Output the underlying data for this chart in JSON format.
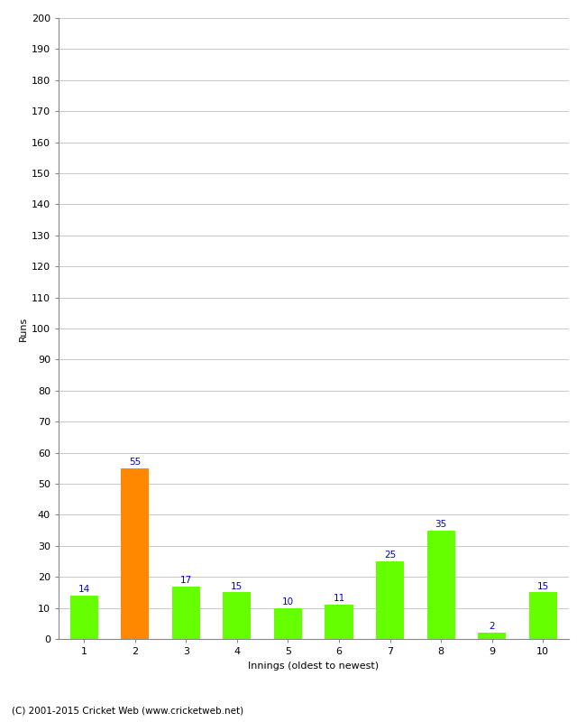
{
  "xlabel": "Innings (oldest to newest)",
  "ylabel": "Runs",
  "categories": [
    "1",
    "2",
    "3",
    "4",
    "5",
    "6",
    "7",
    "8",
    "9",
    "10"
  ],
  "values": [
    14,
    55,
    17,
    15,
    10,
    11,
    25,
    35,
    2,
    15
  ],
  "bar_colors": [
    "#66ff00",
    "#ff8800",
    "#66ff00",
    "#66ff00",
    "#66ff00",
    "#66ff00",
    "#66ff00",
    "#66ff00",
    "#66ff00",
    "#66ff00"
  ],
  "ylim": [
    0,
    200
  ],
  "yticks": [
    0,
    10,
    20,
    30,
    40,
    50,
    60,
    70,
    80,
    90,
    100,
    110,
    120,
    130,
    140,
    150,
    160,
    170,
    180,
    190,
    200
  ],
  "label_color": "#0000cc",
  "label_fontsize": 7.5,
  "axis_label_fontsize": 8,
  "tick_fontsize": 8,
  "footer": "(C) 2001-2015 Cricket Web (www.cricketweb.net)",
  "footer_fontsize": 7.5,
  "background_color": "#ffffff",
  "grid_color": "#c8c8c8",
  "bar_width": 0.55
}
